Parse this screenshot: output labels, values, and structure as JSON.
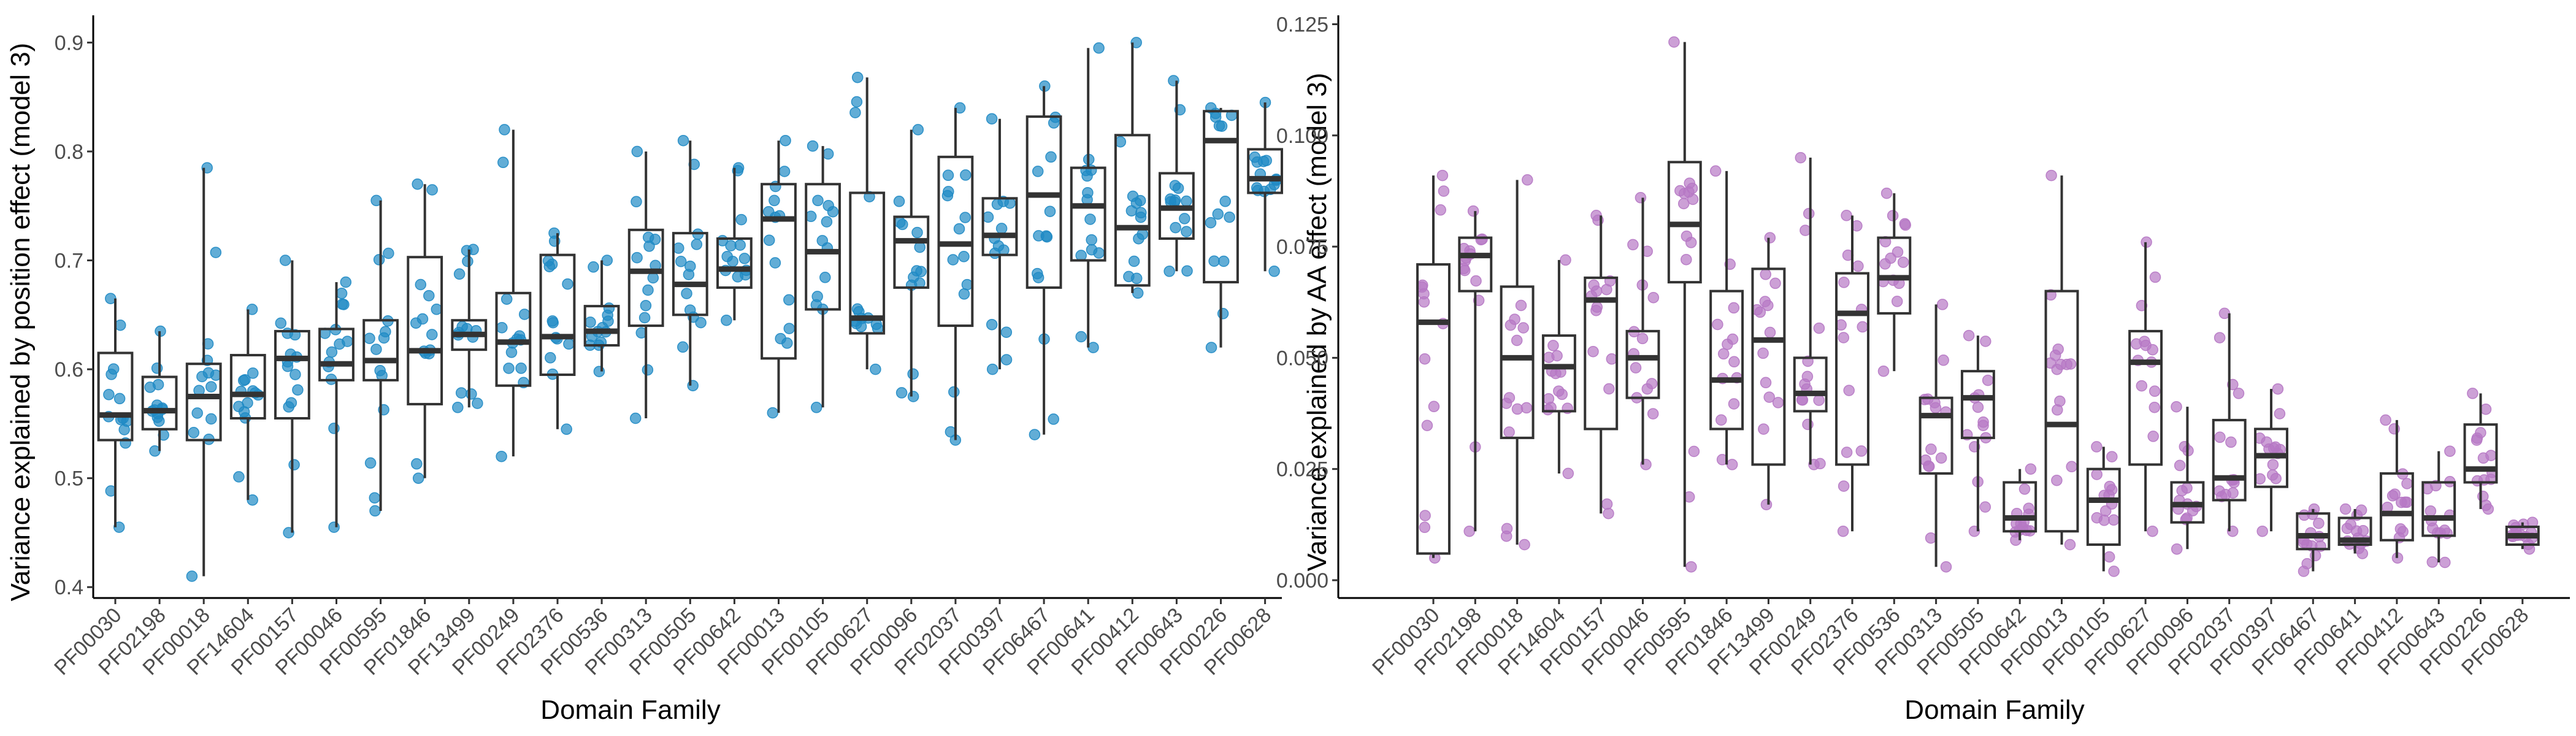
{
  "chart_data": [
    {
      "type": "box",
      "xlabel": "Domain Family",
      "ylabel": "Variance explained by position effect (model 3)",
      "ylim": [
        0.39,
        0.925
      ],
      "yticks": [
        0.4,
        0.5,
        0.6,
        0.7,
        0.8,
        0.9
      ],
      "ytick_labels": [
        "0.4",
        "0.5",
        "0.6",
        "0.7",
        "0.8",
        "0.9"
      ],
      "point_color": "#1f8ac4",
      "grid": false,
      "categories": [
        "PF00030",
        "PF02198",
        "PF00018",
        "PF14604",
        "PF00157",
        "PF00046",
        "PF00595",
        "PF01846",
        "PF13499",
        "PF00249",
        "PF02376",
        "PF00536",
        "PF00313",
        "PF00505",
        "PF00642",
        "PF00013",
        "PF00105",
        "PF00627",
        "PF00096",
        "PF02037",
        "PF00397",
        "PF06467",
        "PF00641",
        "PF00412",
        "PF00643",
        "PF00226",
        "PF00628"
      ],
      "boxes": [
        {
          "min": 0.455,
          "q1": 0.535,
          "median": 0.558,
          "q3": 0.615,
          "max": 0.665
        },
        {
          "min": 0.525,
          "q1": 0.545,
          "median": 0.562,
          "q3": 0.593,
          "max": 0.635
        },
        {
          "min": 0.41,
          "q1": 0.535,
          "median": 0.575,
          "q3": 0.605,
          "max": 0.785
        },
        {
          "min": 0.48,
          "q1": 0.555,
          "median": 0.577,
          "q3": 0.613,
          "max": 0.655
        },
        {
          "min": 0.45,
          "q1": 0.555,
          "median": 0.61,
          "q3": 0.635,
          "max": 0.7
        },
        {
          "min": 0.455,
          "q1": 0.59,
          "median": 0.605,
          "q3": 0.637,
          "max": 0.68
        },
        {
          "min": 0.47,
          "q1": 0.59,
          "median": 0.608,
          "q3": 0.645,
          "max": 0.755
        },
        {
          "min": 0.5,
          "q1": 0.568,
          "median": 0.617,
          "q3": 0.703,
          "max": 0.77
        },
        {
          "min": 0.565,
          "q1": 0.618,
          "median": 0.632,
          "q3": 0.645,
          "max": 0.71
        },
        {
          "min": 0.52,
          "q1": 0.585,
          "median": 0.625,
          "q3": 0.67,
          "max": 0.82
        },
        {
          "min": 0.545,
          "q1": 0.595,
          "median": 0.63,
          "q3": 0.705,
          "max": 0.725
        },
        {
          "min": 0.598,
          "q1": 0.622,
          "median": 0.635,
          "q3": 0.658,
          "max": 0.7
        },
        {
          "min": 0.555,
          "q1": 0.64,
          "median": 0.69,
          "q3": 0.728,
          "max": 0.8
        },
        {
          "min": 0.585,
          "q1": 0.65,
          "median": 0.678,
          "q3": 0.725,
          "max": 0.81
        },
        {
          "min": 0.645,
          "q1": 0.675,
          "median": 0.692,
          "q3": 0.72,
          "max": 0.785
        },
        {
          "min": 0.56,
          "q1": 0.61,
          "median": 0.738,
          "q3": 0.77,
          "max": 0.81
        },
        {
          "min": 0.565,
          "q1": 0.655,
          "median": 0.708,
          "q3": 0.77,
          "max": 0.805
        },
        {
          "min": 0.6,
          "q1": 0.633,
          "median": 0.647,
          "q3": 0.762,
          "max": 0.868
        },
        {
          "min": 0.575,
          "q1": 0.675,
          "median": 0.718,
          "q3": 0.74,
          "max": 0.82
        },
        {
          "min": 0.535,
          "q1": 0.64,
          "median": 0.715,
          "q3": 0.795,
          "max": 0.84
        },
        {
          "min": 0.6,
          "q1": 0.705,
          "median": 0.723,
          "q3": 0.757,
          "max": 0.83
        },
        {
          "min": 0.54,
          "q1": 0.675,
          "median": 0.76,
          "q3": 0.832,
          "max": 0.86
        },
        {
          "min": 0.62,
          "q1": 0.7,
          "median": 0.75,
          "q3": 0.785,
          "max": 0.895
        },
        {
          "min": 0.67,
          "q1": 0.677,
          "median": 0.73,
          "q3": 0.815,
          "max": 0.9
        },
        {
          "min": 0.69,
          "q1": 0.72,
          "median": 0.748,
          "q3": 0.78,
          "max": 0.865
        },
        {
          "min": 0.62,
          "q1": 0.68,
          "median": 0.81,
          "q3": 0.837,
          "max": 0.84
        },
        {
          "min": 0.69,
          "q1": 0.762,
          "median": 0.775,
          "q3": 0.802,
          "max": 0.845
        }
      ]
    },
    {
      "type": "box",
      "xlabel": "Domain Family",
      "ylabel": "Variance explained by AA effect (model 3)",
      "ylim": [
        -0.004,
        0.127
      ],
      "yticks": [
        0,
        0.025,
        0.05,
        0.075,
        0.1,
        0.125
      ],
      "ytick_labels": [
        "0.000",
        "0.025",
        "0.050",
        "0.075",
        "0.100",
        "0.125"
      ],
      "point_color": "#b678c4",
      "grid": false,
      "categories": [
        "PF00030",
        "PF02198",
        "PF00018",
        "PF14604",
        "PF00157",
        "PF00046",
        "PF00595",
        "PF01846",
        "PF13499",
        "PF00249",
        "PF02376",
        "PF00536",
        "PF00313",
        "PF00505",
        "PF00642",
        "PF00013",
        "PF00105",
        "PF00627",
        "PF00096",
        "PF02037",
        "PF00397",
        "PF06467",
        "PF00641",
        "PF00412",
        "PF00643",
        "PF00226",
        "PF00628"
      ],
      "boxes": [
        {
          "min": 0.005,
          "q1": 0.006,
          "median": 0.058,
          "q3": 0.071,
          "max": 0.091
        },
        {
          "min": 0.011,
          "q1": 0.065,
          "median": 0.073,
          "q3": 0.077,
          "max": 0.083
        },
        {
          "min": 0.008,
          "q1": 0.032,
          "median": 0.05,
          "q3": 0.066,
          "max": 0.09
        },
        {
          "min": 0.024,
          "q1": 0.038,
          "median": 0.048,
          "q3": 0.055,
          "max": 0.072
        },
        {
          "min": 0.015,
          "q1": 0.034,
          "median": 0.063,
          "q3": 0.068,
          "max": 0.082
        },
        {
          "min": 0.026,
          "q1": 0.041,
          "median": 0.05,
          "q3": 0.056,
          "max": 0.086
        },
        {
          "min": 0.003,
          "q1": 0.067,
          "median": 0.08,
          "q3": 0.094,
          "max": 0.121
        },
        {
          "min": 0.026,
          "q1": 0.034,
          "median": 0.045,
          "q3": 0.065,
          "max": 0.092
        },
        {
          "min": 0.017,
          "q1": 0.026,
          "median": 0.054,
          "q3": 0.07,
          "max": 0.077
        },
        {
          "min": 0.026,
          "q1": 0.038,
          "median": 0.042,
          "q3": 0.05,
          "max": 0.095
        },
        {
          "min": 0.011,
          "q1": 0.026,
          "median": 0.06,
          "q3": 0.069,
          "max": 0.082
        },
        {
          "min": 0.047,
          "q1": 0.06,
          "median": 0.068,
          "q3": 0.077,
          "max": 0.087
        },
        {
          "min": 0.003,
          "q1": 0.024,
          "median": 0.037,
          "q3": 0.041,
          "max": 0.062
        },
        {
          "min": 0.011,
          "q1": 0.032,
          "median": 0.041,
          "q3": 0.047,
          "max": 0.055
        },
        {
          "min": 0.009,
          "q1": 0.011,
          "median": 0.014,
          "q3": 0.022,
          "max": 0.025
        },
        {
          "min": 0.008,
          "q1": 0.011,
          "median": 0.035,
          "q3": 0.065,
          "max": 0.091
        },
        {
          "min": 0.002,
          "q1": 0.008,
          "median": 0.018,
          "q3": 0.025,
          "max": 0.03
        },
        {
          "min": 0.011,
          "q1": 0.026,
          "median": 0.049,
          "q3": 0.056,
          "max": 0.076
        },
        {
          "min": 0.007,
          "q1": 0.013,
          "median": 0.017,
          "q3": 0.022,
          "max": 0.039
        },
        {
          "min": 0.011,
          "q1": 0.018,
          "median": 0.023,
          "q3": 0.036,
          "max": 0.06
        },
        {
          "min": 0.011,
          "q1": 0.021,
          "median": 0.028,
          "q3": 0.034,
          "max": 0.043
        },
        {
          "min": 0.002,
          "q1": 0.007,
          "median": 0.01,
          "q3": 0.015,
          "max": 0.016
        },
        {
          "min": 0.006,
          "q1": 0.008,
          "median": 0.009,
          "q3": 0.014,
          "max": 0.016
        },
        {
          "min": 0.005,
          "q1": 0.009,
          "median": 0.015,
          "q3": 0.024,
          "max": 0.036
        },
        {
          "min": 0.004,
          "q1": 0.01,
          "median": 0.014,
          "q3": 0.022,
          "max": 0.029
        },
        {
          "min": 0.016,
          "q1": 0.022,
          "median": 0.025,
          "q3": 0.035,
          "max": 0.042
        },
        {
          "min": 0.007,
          "q1": 0.008,
          "median": 0.01,
          "q3": 0.012,
          "max": 0.013
        }
      ]
    }
  ]
}
